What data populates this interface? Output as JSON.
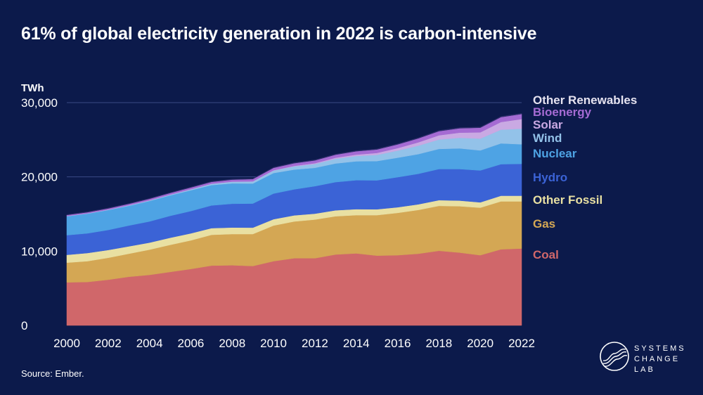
{
  "title": "61% of global electricity generation in 2022 is carbon-intensive",
  "source": "Source: Ember.",
  "logo": {
    "line1": "SYSTEMS",
    "line2": "CHANGE",
    "line3": "LAB"
  },
  "chart_data": {
    "type": "area",
    "stacked": true,
    "ylabel": "TWh",
    "ylim": [
      0,
      30000
    ],
    "yticks": [
      0,
      10000,
      20000,
      30000
    ],
    "ytick_labels": [
      "0",
      "10,000",
      "20,000",
      "30,000"
    ],
    "xticks": [
      "2000",
      "2002",
      "2004",
      "2006",
      "2008",
      "2010",
      "2012",
      "2014",
      "2016",
      "2018",
      "2020",
      "2022"
    ],
    "x": [
      2000,
      2001,
      2002,
      2003,
      2004,
      2005,
      2006,
      2007,
      2008,
      2009,
      2010,
      2011,
      2012,
      2013,
      2014,
      2015,
      2016,
      2017,
      2018,
      2019,
      2020,
      2021,
      2022
    ],
    "series": [
      {
        "name": "Coal",
        "color": "#d0676a",
        "values": [
          5800,
          5850,
          6150,
          6550,
          6800,
          7200,
          7600,
          8050,
          8100,
          8000,
          8650,
          9050,
          9050,
          9550,
          9700,
          9400,
          9450,
          9650,
          10050,
          9800,
          9450,
          10250,
          10350
        ]
      },
      {
        "name": "Gas",
        "color": "#d4a754",
        "values": [
          2650,
          2800,
          2950,
          3100,
          3400,
          3650,
          3850,
          4150,
          4200,
          4300,
          4800,
          4950,
          5200,
          5150,
          5150,
          5450,
          5700,
          5900,
          6050,
          6250,
          6400,
          6450,
          6350
        ]
      },
      {
        "name": "Other Fossil",
        "color": "#e9e0a2",
        "values": [
          1050,
          1100,
          1050,
          1000,
          950,
          950,
          950,
          900,
          880,
          860,
          850,
          820,
          800,
          800,
          800,
          780,
          760,
          760,
          760,
          760,
          720,
          760,
          760
        ]
      },
      {
        "name": "Hydro",
        "color": "#3b63d6",
        "values": [
          2650,
          2650,
          2700,
          2800,
          2850,
          2950,
          3000,
          3050,
          3200,
          3250,
          3450,
          3500,
          3700,
          3800,
          3900,
          3900,
          4050,
          4100,
          4200,
          4250,
          4300,
          4250,
          4300
        ]
      },
      {
        "name": "Nuclear",
        "color": "#4ea3e4",
        "values": [
          2550,
          2650,
          2680,
          2650,
          2750,
          2760,
          2800,
          2750,
          2750,
          2700,
          2770,
          2660,
          2470,
          2500,
          2550,
          2600,
          2620,
          2650,
          2700,
          2780,
          2690,
          2800,
          2630
        ]
      },
      {
        "name": "Wind",
        "color": "#93c2e9",
        "values": [
          30,
          40,
          60,
          80,
          90,
          100,
          130,
          170,
          220,
          270,
          340,
          440,
          520,
          640,
          710,
          830,
          960,
          1140,
          1270,
          1420,
          1590,
          1850,
          2100
        ]
      },
      {
        "name": "Solar",
        "color": "#c9a9e3",
        "values": [
          1,
          1,
          2,
          3,
          4,
          5,
          6,
          8,
          12,
          20,
          32,
          65,
          100,
          140,
          190,
          260,
          330,
          450,
          570,
          700,
          850,
          1030,
          1300
        ]
      },
      {
        "name": "Bioenergy",
        "color": "#a56bd3",
        "values": [
          140,
          150,
          160,
          180,
          200,
          210,
          230,
          250,
          270,
          300,
          330,
          360,
          380,
          410,
          450,
          470,
          500,
          530,
          560,
          590,
          620,
          660,
          680
        ]
      },
      {
        "name": "Other Renewables",
        "color": "#2c2e6a",
        "values": [
          55,
          58,
          60,
          60,
          62,
          63,
          65,
          66,
          67,
          68,
          70,
          72,
          73,
          75,
          80,
          82,
          85,
          88,
          88,
          88,
          90,
          92,
          94
        ]
      }
    ],
    "legend_labels": {
      "Other Renewables": "Other Renewables",
      "Bioenergy": "Bioenergy",
      "Solar": "Solar",
      "Wind": "Wind",
      "Nuclear": "Nuclear",
      "Hydro": "Hydro",
      "Other Fossil": "Other Fossil",
      "Gas": "Gas",
      "Coal": "Coal"
    }
  }
}
